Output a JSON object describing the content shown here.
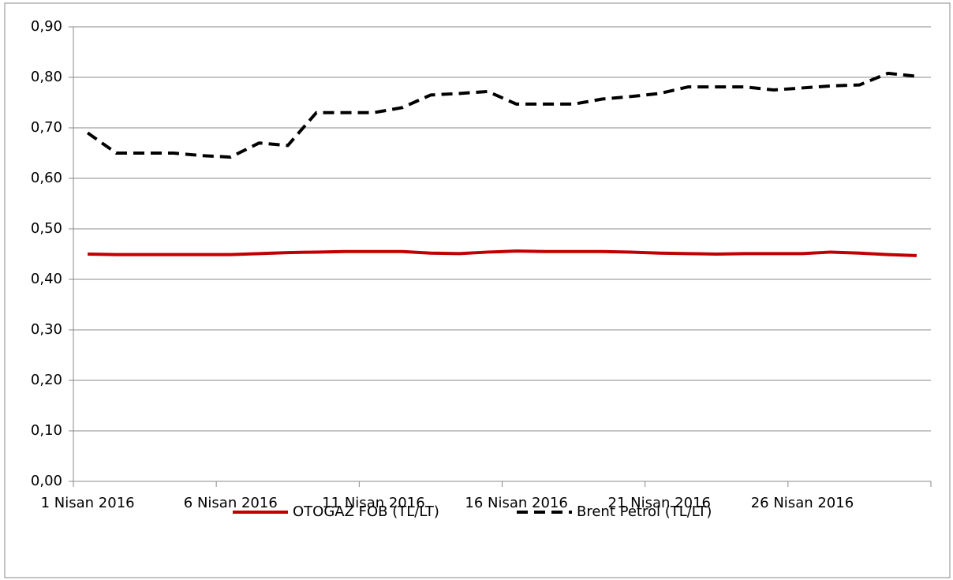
{
  "chart_data": {
    "type": "line",
    "categories": [
      "1 Nisan 2016",
      null,
      null,
      null,
      null,
      "6 Nisan 2016",
      null,
      null,
      null,
      null,
      "11 Nisan 2016",
      null,
      null,
      null,
      null,
      "16 Nisan 2016",
      null,
      null,
      null,
      null,
      "21 Nisan 2016",
      null,
      null,
      null,
      null,
      "26 Nisan 2016",
      null,
      null,
      null,
      null
    ],
    "series": [
      {
        "name": "OTOGAZ FOB (TL/LT)",
        "color": "#c00000",
        "dash": false,
        "values": [
          0.45,
          0.449,
          0.449,
          0.449,
          0.449,
          0.449,
          0.451,
          0.453,
          0.454,
          0.455,
          0.455,
          0.455,
          0.452,
          0.451,
          0.454,
          0.456,
          0.455,
          0.455,
          0.455,
          0.454,
          0.452,
          0.451,
          0.45,
          0.451,
          0.451,
          0.451,
          0.454,
          0.452,
          0.449,
          0.447
        ]
      },
      {
        "name": "Brent Petrol (TL/LT)",
        "color": "#000000",
        "dash": true,
        "values": [
          0.69,
          0.65,
          0.65,
          0.65,
          0.645,
          0.642,
          0.67,
          0.665,
          0.73,
          0.73,
          0.73,
          0.74,
          0.765,
          0.768,
          0.772,
          0.747,
          0.747,
          0.747,
          0.757,
          0.762,
          0.768,
          0.781,
          0.781,
          0.781,
          0.775,
          0.779,
          0.783,
          0.785,
          0.808,
          0.802
        ]
      }
    ],
    "ylim": [
      0,
      0.9
    ],
    "yticks": [
      {
        "value": 0,
        "label": "0,00"
      },
      {
        "value": 0.1,
        "label": "0,10"
      },
      {
        "value": 0.2,
        "label": "0,20"
      },
      {
        "value": 0.3,
        "label": "0,30"
      },
      {
        "value": 0.4,
        "label": "0,40"
      },
      {
        "value": 0.5,
        "label": "0,50"
      },
      {
        "value": 0.6,
        "label": "0,60"
      },
      {
        "value": 0.7,
        "label": "0,70"
      },
      {
        "value": 0.8,
        "label": "0,80"
      },
      {
        "value": 0.9,
        "label": "0,90"
      }
    ],
    "grid": true,
    "legend": "bottom"
  }
}
